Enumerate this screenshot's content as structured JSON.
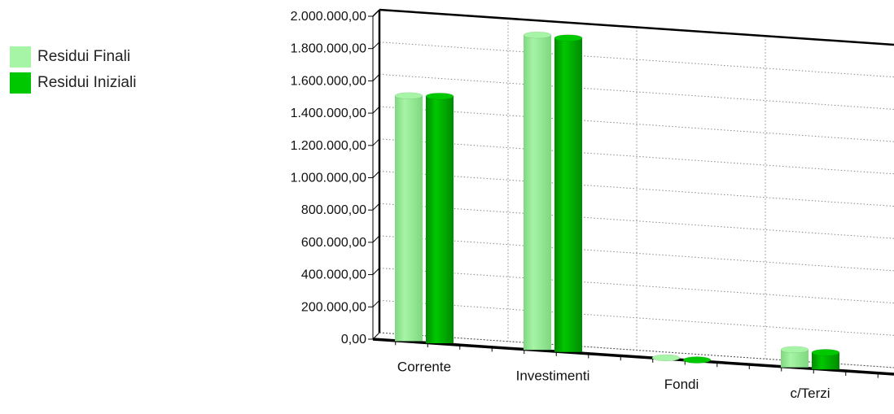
{
  "chart_data": {
    "type": "bar",
    "categories": [
      "Corrente",
      "Investimenti",
      "Fondi",
      "c/Terzi"
    ],
    "series": [
      {
        "name": "Residui Finali",
        "color": "#a6f4a6",
        "values": [
          1520000,
          1950000,
          5000,
          110000
        ]
      },
      {
        "name": "Residui Iniziali",
        "color": "#00c800",
        "values": [
          1530000,
          1945000,
          5000,
          105000
        ]
      }
    ],
    "ylim": [
      0,
      2000000
    ],
    "yticks": [
      0,
      200000,
      400000,
      600000,
      800000,
      1000000,
      1200000,
      1400000,
      1600000,
      1800000,
      2000000
    ],
    "ytick_labels": [
      "0,00",
      "200.000,00",
      "400.000,00",
      "600.000,00",
      "800.000,00",
      "1.000.000,00",
      "1.200.000,00",
      "1.400.000,00",
      "1.600.000,00",
      "1.800.000,00",
      "2.000.000,00"
    ],
    "grid": true,
    "legend_position": "top-left",
    "xlabel": "",
    "ylabel": "",
    "title": ""
  }
}
